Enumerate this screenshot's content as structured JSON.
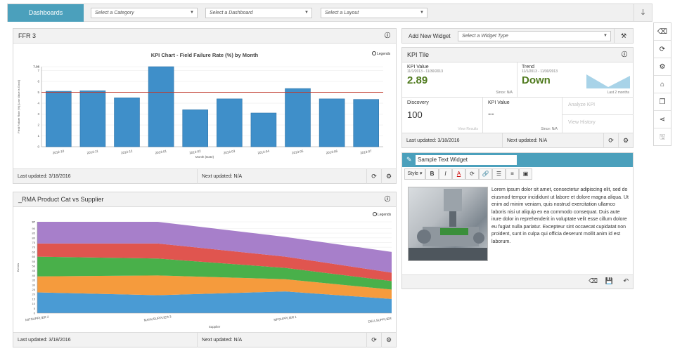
{
  "topbar": {
    "tab": "Dashboards",
    "category": "Select a Category",
    "dashboard": "Select a Dashboard",
    "layout": "Select a Layout"
  },
  "ffr": {
    "title": "FFR 3",
    "last": "Last updated: 3/18/2016",
    "next": "Next updated: N/A"
  },
  "rma": {
    "title": "_RMA Product Cat vs Supplier",
    "last": "Last updated: 3/18/2016",
    "next": "Next updated: N/A"
  },
  "addwidget": {
    "label": "Add New Widget",
    "placeholder": "Select a Widget Type"
  },
  "kpi": {
    "title": "KPI Tile",
    "kv_label": "KPI Value",
    "kv_range": "11/1/2013 - 11/30/2013",
    "kv_value": "2.89",
    "kv_since": "Since: N/A",
    "tr_label": "Trend",
    "tr_range": "11/1/2013 - 11/30/2013",
    "tr_value": "Down",
    "tr_months": "Last 2 months",
    "disc_label": "Discovery",
    "disc_value": "100",
    "disc_link": "View Results",
    "kv2_label": "KPI Value",
    "kv2_value": "--",
    "kv2_since": "Since: N/A",
    "analyze": "Analyze KPI",
    "history": "View History",
    "last": "Last updated: 3/18/2016",
    "next": "Next updated: N/A"
  },
  "textwidget": {
    "title": "Sample Text Widget",
    "style": "Style",
    "body": "Lorem ipsum dolor sit amet, consectetur adipiscing elit, sed do eiusmod tempor incididunt ut labore et dolore magna aliqua. Ut enim ad minim veniam, quis nostrud exercitation ullamco laboris nisi ut aliquip ex ea commodo consequat. Duis aute irure dolor in reprehenderit in voluptate velit esse cillum dolore eu fugiat nulla pariatur. Excepteur sint occaecat cupidatat non proident, sunt in culpa qui officia deserunt mollit anim id est laborum."
  },
  "colors": {
    "accent": "#4ba0bc",
    "kpi_green": "#4f7a1e",
    "bar": "#3f8fc9",
    "threshold": "#c0392b"
  },
  "chart_data": [
    {
      "type": "bar",
      "title": "KPI Chart - Field Failure Rate (%) by Month",
      "xlabel": "Month (Date)",
      "ylabel": "Field Failure Rate (%) [Low Value is Good]",
      "legend": "Legends",
      "categories": [
        "2012-10",
        "2012-11",
        "2012-12",
        "2013-01",
        "2013-02",
        "2013-03",
        "2013-04",
        "2013-05",
        "2013-06",
        "2013-07"
      ],
      "values": [
        5.1,
        5.15,
        4.5,
        7.36,
        3.4,
        4.4,
        3.1,
        5.35,
        4.4,
        4.35
      ],
      "threshold": 5.0,
      "ylim": [
        0,
        7.36
      ],
      "yticks": [
        "0",
        "1",
        "2",
        "3",
        "4",
        "5",
        "6",
        "7",
        "7.36"
      ]
    },
    {
      "type": "area",
      "xlabel": "Supplier",
      "ylabel": "Events",
      "legend": "Legends",
      "categories": [
        "MITSUPPLIER 2",
        "MANUSUPPLIER 3",
        "MPSUPPLIER 1",
        "DELLSUPPLIER"
      ],
      "ylim": [
        0,
        97
      ],
      "yticks": [
        "0",
        "5",
        "10",
        "15",
        "20",
        "25",
        "30",
        "35",
        "40",
        "45",
        "50",
        "55",
        "60",
        "65",
        "70",
        "75",
        "80",
        "85",
        "90",
        "97"
      ],
      "series": [
        {
          "color": "#4a9bd4",
          "values": [
            22,
            19,
            23,
            15
          ]
        },
        {
          "color": "#f59b3d",
          "values": [
            17,
            21,
            13,
            10
          ]
        },
        {
          "color": "#49b04a",
          "values": [
            21,
            18,
            12,
            9
          ]
        },
        {
          "color": "#e0554f",
          "values": [
            14,
            16,
            12,
            9
          ]
        },
        {
          "color": "#a77fca",
          "values": [
            23,
            23,
            21,
            22
          ]
        }
      ]
    }
  ]
}
